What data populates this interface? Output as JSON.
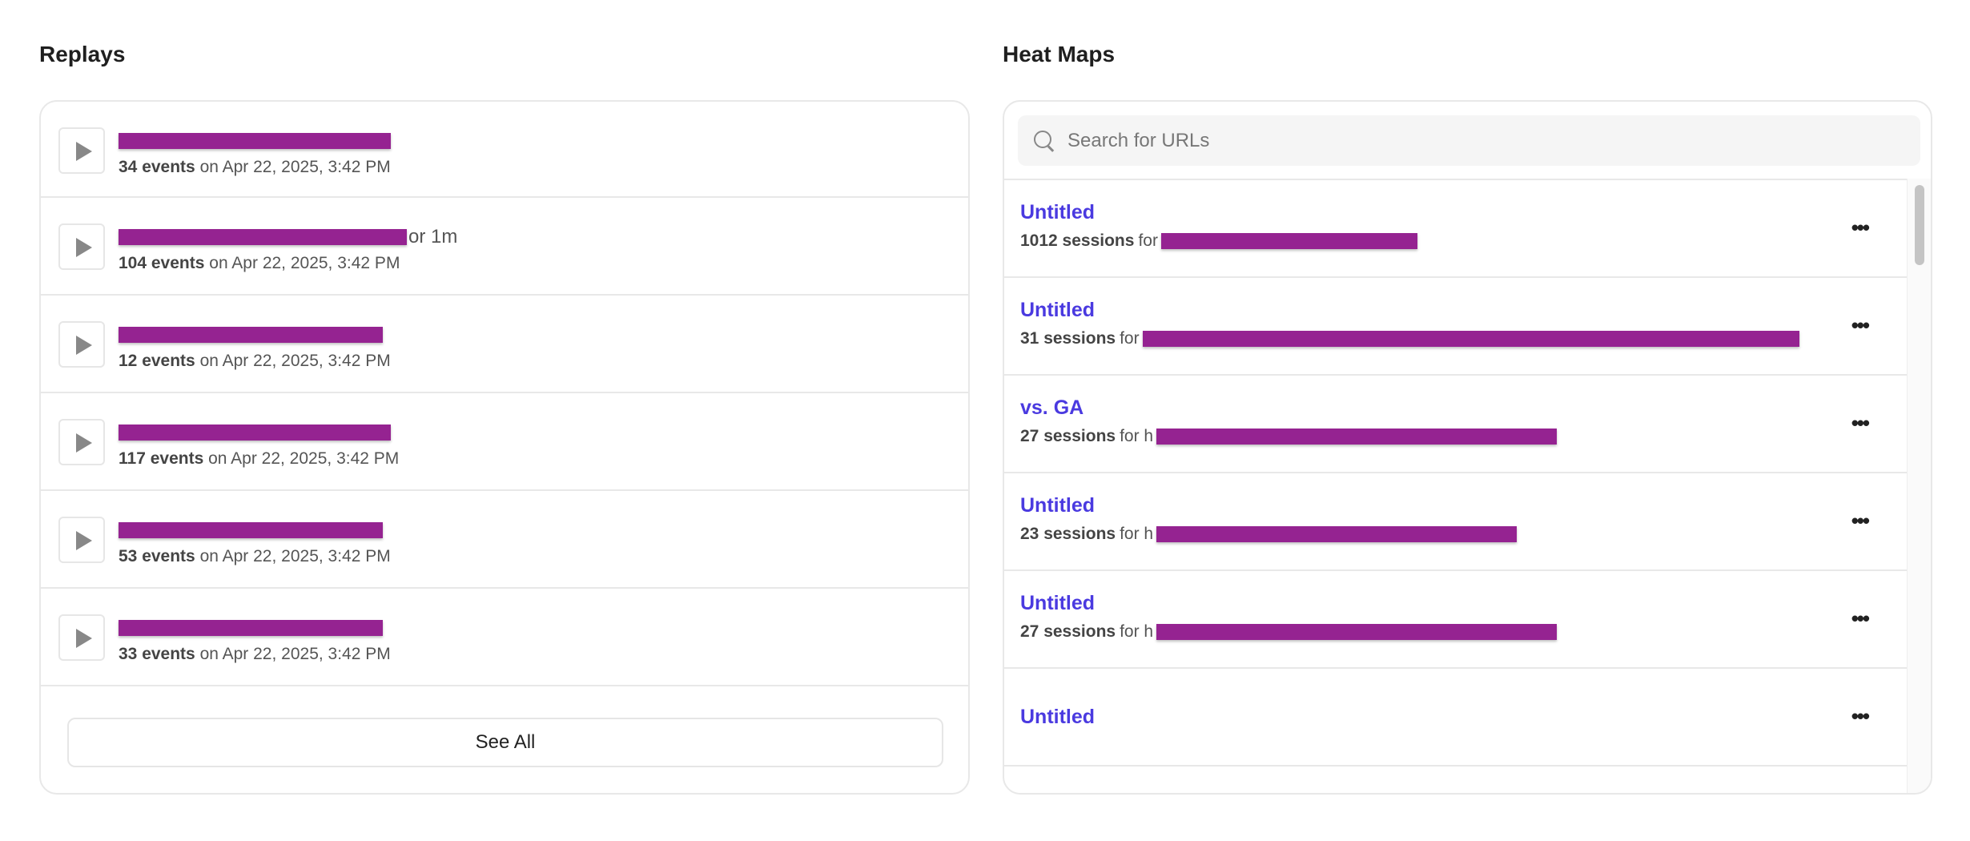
{
  "replays": {
    "title": "Replays",
    "items": [
      {
        "tail": "",
        "count": "34 events",
        "date": "on Apr 22, 2025, 3:42 PM"
      },
      {
        "tail": "or 1m",
        "count": "104 events",
        "date": "on Apr 22, 2025, 3:42 PM"
      },
      {
        "tail": "",
        "count": "12 events",
        "date": "on Apr 22, 2025, 3:42 PM"
      },
      {
        "tail": "",
        "count": "117 events",
        "date": "on Apr 22, 2025, 3:42 PM"
      },
      {
        "tail": "",
        "count": "53 events",
        "date": "on Apr 22, 2025, 3:42 PM"
      },
      {
        "tail": "",
        "count": "33 events",
        "date": "on Apr 22, 2025, 3:42 PM"
      }
    ],
    "see_all": "See All"
  },
  "heatmaps": {
    "title": "Heat Maps",
    "search_placeholder": "Search for URLs",
    "items": [
      {
        "name": "Untitled",
        "count": "1012 sessions",
        "for": "for"
      },
      {
        "name": "Untitled",
        "count": "31 sessions",
        "for": "for"
      },
      {
        "name": "vs. GA",
        "count": "27 sessions",
        "for": "for h"
      },
      {
        "name": "Untitled",
        "count": "23 sessions",
        "for": "for h"
      },
      {
        "name": "Untitled",
        "count": "27 sessions",
        "for": "for h"
      },
      {
        "name": "Untitled"
      }
    ],
    "more_label": "•••"
  },
  "colors": {
    "link": "#4a3ae0",
    "redaction": "#952391"
  }
}
